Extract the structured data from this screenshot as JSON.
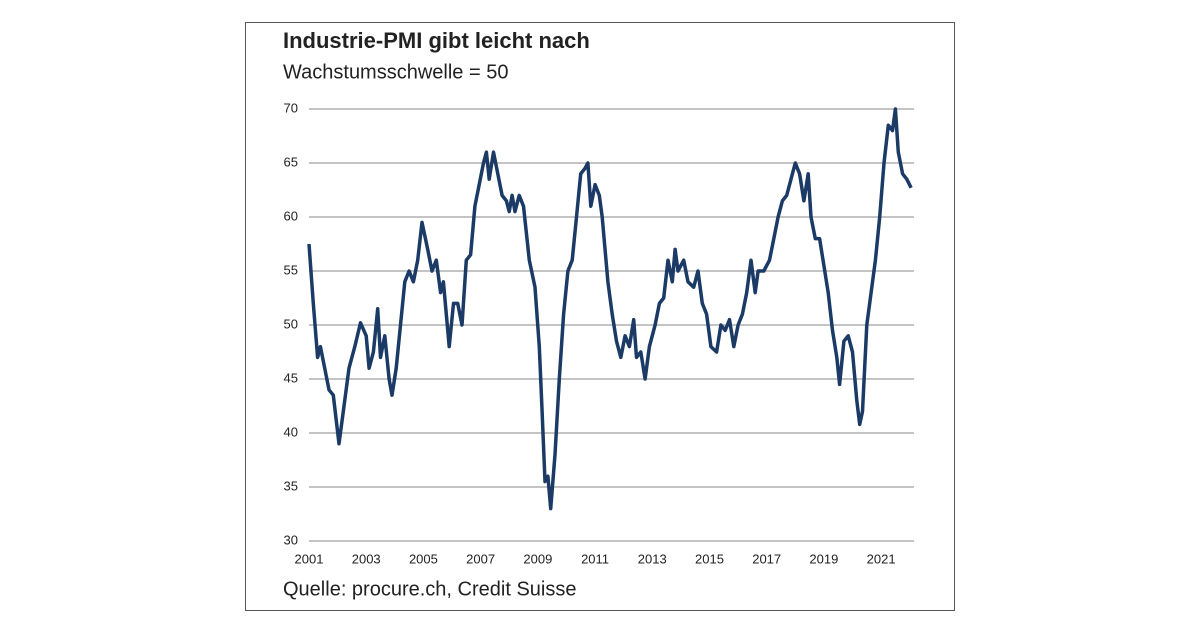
{
  "chart_data": {
    "type": "line",
    "title": "Industrie-PMI gibt leicht nach",
    "subtitle": "Wachstumsschwelle = 50",
    "source": "Quelle: procure.ch, Credit Suisse",
    "x": [
      2001.0,
      2001.15,
      2001.3,
      2001.4,
      2001.55,
      2001.7,
      2001.85,
      2002.05,
      2002.2,
      2002.4,
      2002.6,
      2002.8,
      2003.0,
      2003.1,
      2003.25,
      2003.4,
      2003.5,
      2003.65,
      2003.8,
      2003.9,
      2004.05,
      2004.2,
      2004.35,
      2004.5,
      2004.65,
      2004.8,
      2004.95,
      2005.15,
      2005.3,
      2005.45,
      2005.6,
      2005.7,
      2005.8,
      2005.9,
      2006.05,
      2006.2,
      2006.35,
      2006.5,
      2006.65,
      2006.8,
      2006.95,
      2007.1,
      2007.2,
      2007.3,
      2007.45,
      2007.6,
      2007.75,
      2007.9,
      2008.0,
      2008.1,
      2008.2,
      2008.35,
      2008.5,
      2008.7,
      2008.9,
      2009.05,
      2009.15,
      2009.25,
      2009.35,
      2009.45,
      2009.6,
      2009.75,
      2009.9,
      2010.05,
      2010.2,
      2010.35,
      2010.5,
      2010.65,
      2010.75,
      2010.85,
      2011.0,
      2011.15,
      2011.25,
      2011.45,
      2011.6,
      2011.75,
      2011.9,
      2012.05,
      2012.2,
      2012.35,
      2012.45,
      2012.6,
      2012.75,
      2012.9,
      2013.1,
      2013.25,
      2013.4,
      2013.55,
      2013.7,
      2013.8,
      2013.9,
      2014.1,
      2014.25,
      2014.45,
      2014.6,
      2014.75,
      2014.9,
      2015.05,
      2015.25,
      2015.4,
      2015.55,
      2015.7,
      2015.85,
      2016.0,
      2016.15,
      2016.3,
      2016.45,
      2016.6,
      2016.7,
      2016.9,
      2017.1,
      2017.25,
      2017.4,
      2017.55,
      2017.7,
      2017.85,
      2018.0,
      2018.15,
      2018.3,
      2018.45,
      2018.55,
      2018.7,
      2018.85,
      2019.0,
      2019.15,
      2019.3,
      2019.45,
      2019.55,
      2019.7,
      2019.85,
      2020.0,
      2020.15,
      2020.25,
      2020.35,
      2020.5,
      2020.65,
      2020.8,
      2020.95,
      2021.1,
      2021.25,
      2021.4,
      2021.5,
      2021.6,
      2021.75,
      2021.9,
      2022.05
    ],
    "series": [
      {
        "color": "#1b3a66",
        "values": [
          57.5,
          52,
          47,
          48,
          46,
          44,
          43.5,
          39,
          42,
          46,
          48,
          50.2,
          49,
          46,
          47.5,
          51.5,
          47,
          49,
          45,
          43.5,
          46,
          50,
          54,
          55,
          54,
          56,
          59.5,
          57,
          55,
          56,
          53,
          54,
          51,
          48,
          52,
          52,
          50,
          56,
          56.5,
          61,
          63,
          65,
          66,
          63.5,
          66,
          64,
          62,
          61.5,
          60.5,
          62,
          60.5,
          62,
          61,
          56,
          53.5,
          48,
          42,
          35.5,
          36,
          33,
          38,
          45,
          51,
          55,
          56,
          60,
          64,
          64.5,
          65,
          61,
          63,
          62,
          60,
          54,
          51,
          48.5,
          47,
          49,
          48,
          50.5,
          47,
          47.5,
          45,
          48,
          50,
          52,
          52.5,
          56,
          54,
          57,
          55,
          56,
          54,
          53.5,
          55,
          52,
          51,
          48,
          47.5,
          50,
          49.5,
          50.5,
          48,
          50,
          51,
          53,
          56,
          53,
          55,
          55,
          56,
          58,
          60,
          61.5,
          62,
          63.5,
          65,
          64,
          61.5,
          64,
          60,
          58,
          58,
          55.5,
          53,
          49.5,
          47,
          44.5,
          48.5,
          49,
          47.5,
          43,
          40.8,
          42,
          50,
          53,
          56,
          60,
          65,
          68.5,
          68,
          70,
          66,
          64,
          63.5,
          62.7
        ]
      }
    ],
    "xlim": [
      2001,
      2022.15
    ],
    "xticks": [
      2001,
      2003,
      2005,
      2007,
      2009,
      2011,
      2013,
      2015,
      2017,
      2019,
      2021
    ],
    "ylim": [
      30,
      70
    ],
    "yticks": [
      30,
      35,
      40,
      45,
      50,
      55,
      60,
      65,
      70
    ],
    "grid": true
  }
}
